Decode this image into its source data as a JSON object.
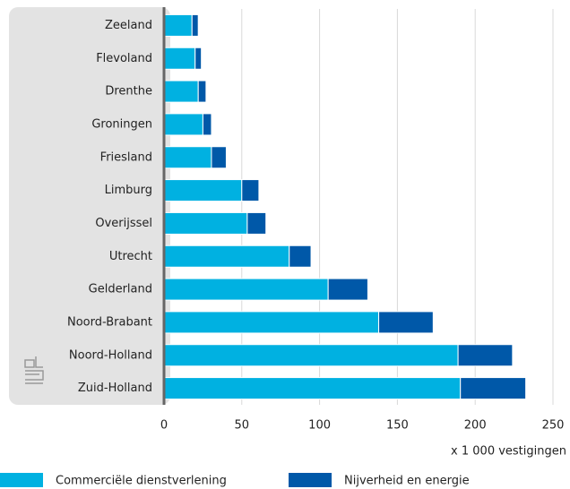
{
  "chart_data": {
    "type": "bar",
    "orientation": "horizontal",
    "stacked": true,
    "categories": [
      "Zeeland",
      "Flevoland",
      "Drenthe",
      "Groningen",
      "Friesland",
      "Limburg",
      "Overijssel",
      "Utrecht",
      "Gelderland",
      "Noord-Brabant",
      "Noord-Holland",
      "Zuid-Holland"
    ],
    "series": [
      {
        "name": "Commerciële dienstverlening",
        "color": "#00b1e1",
        "values": [
          18,
          20,
          22,
          25,
          30.5,
          50,
          53.5,
          80.5,
          105.5,
          138,
          189,
          190.5
        ]
      },
      {
        "name": "Nijverheid en energie",
        "color": "#0058a8",
        "values": [
          4,
          4,
          5,
          5.5,
          9.5,
          11,
          12,
          14,
          25.5,
          35,
          35,
          42
        ]
      }
    ],
    "xlim": [
      0,
      250
    ],
    "xticks": [
      0,
      50,
      100,
      150,
      200,
      250
    ],
    "xlabel": "x 1 000 vestigingen",
    "grid": true,
    "legend": "bottom"
  }
}
